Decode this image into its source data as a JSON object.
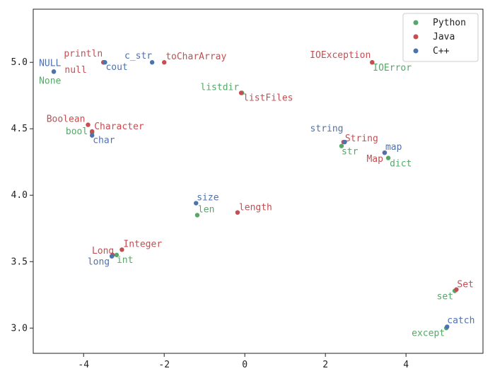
{
  "chart_data": {
    "type": "scatter",
    "xlim": [
      -5.25,
      5.91
    ],
    "ylim": [
      2.81,
      5.4
    ],
    "xticks": [
      -4,
      -2,
      0,
      2,
      4
    ],
    "yticks": [
      {
        "value": 3,
        "label": "3.0"
      },
      3.5,
      {
        "value": 4,
        "label": "4.0"
      },
      4.5,
      {
        "value": 5,
        "label": "5.0"
      }
    ],
    "legend": "upper right",
    "series": [
      {
        "name": "Python",
        "color": "#55a868",
        "labels": [
          "None",
          "bool",
          "listdir",
          "str",
          "dict",
          "len",
          "int",
          "set",
          "except",
          "IOError"
        ],
        "x": [
          -4.74,
          -3.79,
          -0.07,
          2.4,
          3.56,
          -1.18,
          -3.18,
          5.21,
          5.0,
          3.16
        ],
        "y": [
          4.93,
          4.47,
          4.77,
          4.37,
          4.28,
          3.85,
          3.55,
          3.28,
          3.0,
          5.0
        ]
      },
      {
        "name": "Java",
        "color": "#c44e52",
        "labels": [
          "println",
          "null",
          "toCharArray",
          "Boolean",
          "Character",
          "listFiles",
          "String",
          "Map",
          "length",
          "Integer",
          "Long",
          "Set",
          "IOException"
        ],
        "x": [
          -3.51,
          -3.5,
          -2.0,
          -3.89,
          -3.79,
          -0.09,
          2.45,
          3.47,
          -0.18,
          -3.05,
          -3.28,
          5.25,
          3.16
        ],
        "y": [
          5.0,
          5.0,
          5.0,
          4.53,
          4.48,
          4.77,
          4.4,
          4.32,
          3.87,
          3.59,
          3.55,
          3.29,
          5.0
        ]
      },
      {
        "name": "C++",
        "color": "#4c72b0",
        "labels": [
          "NULL",
          "cout",
          "c_str",
          "char",
          "string",
          "map",
          "size",
          "long",
          "catch"
        ],
        "x": [
          -4.74,
          -3.47,
          -2.3,
          -3.79,
          2.48,
          3.47,
          -1.21,
          -3.3,
          5.02
        ],
        "y": [
          4.93,
          5.0,
          5.0,
          4.45,
          4.4,
          4.32,
          3.94,
          3.54,
          3.01
        ]
      }
    ]
  }
}
